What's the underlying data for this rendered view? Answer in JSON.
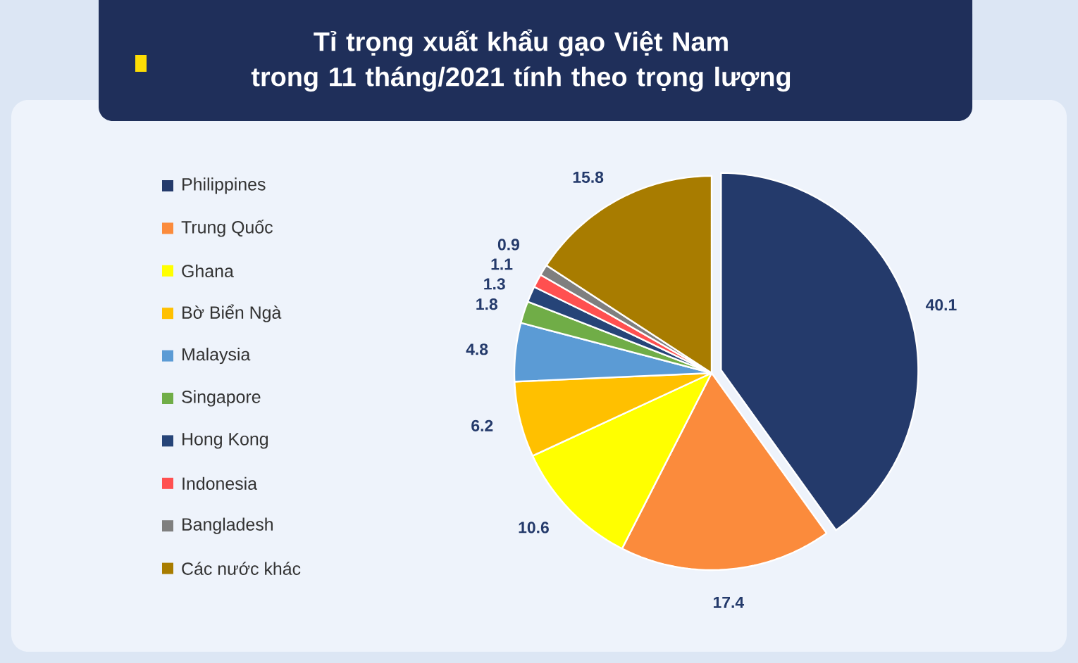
{
  "chart_data": {
    "type": "pie",
    "title": "Tỉ trọng xuất khẩu gạo Việt Nam\ntrong 11 tháng/2021 tính theo trọng lượng",
    "categories": [
      "Philippines",
      "Trung Quốc",
      "Ghana",
      "Bờ Biển Ngà",
      "Malaysia",
      "Singapore",
      "Hong Kong",
      "Indonesia",
      "Bangladesh",
      "Các nước khác"
    ],
    "values": [
      40.1,
      17.4,
      10.6,
      6.2,
      4.8,
      1.8,
      1.3,
      1.1,
      0.9,
      15.8
    ],
    "colors": [
      "#243a6b",
      "#fb8b3c",
      "#ffff00",
      "#ffc000",
      "#5b9bd5",
      "#70ad47",
      "#264478",
      "#ff5050",
      "#7f7f7f",
      "#a87c00"
    ],
    "data_labels": true,
    "legend": "left"
  }
}
